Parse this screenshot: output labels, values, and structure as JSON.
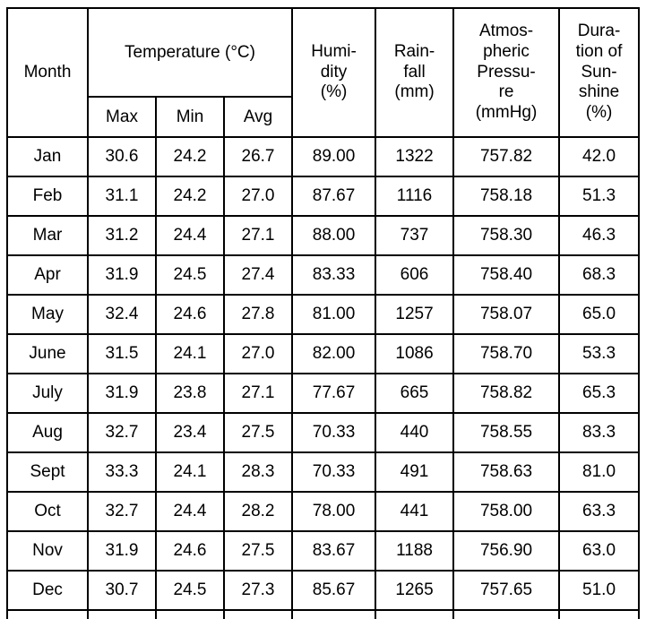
{
  "table": {
    "headers": {
      "month": "Month",
      "temperature_group": "Temperature (°C)",
      "temp_max": "Max",
      "temp_min": "Min",
      "temp_avg": "Avg",
      "humidity": "Humi-\ndity\n(%)",
      "rainfall": "Rain-\nfall\n(mm)",
      "pressure": "Atmos-\npheric\nPressu-\nre\n(mmHg)",
      "sunshine": "Dura-\ntion of\nSun-\nshine\n(%)"
    },
    "rows": [
      {
        "month": "Jan",
        "max": "30.6",
        "min": "24.2",
        "avg": "26.7",
        "humidity": "89.00",
        "rainfall": "1322",
        "pressure": "757.82",
        "sunshine": "42.0"
      },
      {
        "month": "Feb",
        "max": "31.1",
        "min": "24.2",
        "avg": "27.0",
        "humidity": "87.67",
        "rainfall": "1116",
        "pressure": "758.18",
        "sunshine": "51.3"
      },
      {
        "month": "Mar",
        "max": "31.2",
        "min": "24.4",
        "avg": "27.1",
        "humidity": "88.00",
        "rainfall": "737",
        "pressure": "758.30",
        "sunshine": "46.3"
      },
      {
        "month": "Apr",
        "max": "31.9",
        "min": "24.5",
        "avg": "27.4",
        "humidity": "83.33",
        "rainfall": "606",
        "pressure": "758.40",
        "sunshine": "68.3"
      },
      {
        "month": "May",
        "max": "32.4",
        "min": "24.6",
        "avg": "27.8",
        "humidity": "81.00",
        "rainfall": "1257",
        "pressure": "758.07",
        "sunshine": "65.0"
      },
      {
        "month": "June",
        "max": "31.5",
        "min": "24.1",
        "avg": "27.0",
        "humidity": "82.00",
        "rainfall": "1086",
        "pressure": "758.70",
        "sunshine": "53.3"
      },
      {
        "month": "July",
        "max": "31.9",
        "min": "23.8",
        "avg": "27.1",
        "humidity": "77.67",
        "rainfall": "665",
        "pressure": "758.82",
        "sunshine": "65.3"
      },
      {
        "month": "Aug",
        "max": "32.7",
        "min": "23.4",
        "avg": "27.5",
        "humidity": "70.33",
        "rainfall": "440",
        "pressure": "758.55",
        "sunshine": "83.3"
      },
      {
        "month": "Sept",
        "max": "33.3",
        "min": "24.1",
        "avg": "28.3",
        "humidity": "70.33",
        "rainfall": "491",
        "pressure": "758.63",
        "sunshine": "81.0"
      },
      {
        "month": "Oct",
        "max": "32.7",
        "min": "24.4",
        "avg": "28.2",
        "humidity": "78.00",
        "rainfall": "441",
        "pressure": "758.00",
        "sunshine": "63.3"
      },
      {
        "month": "Nov",
        "max": "31.9",
        "min": "24.6",
        "avg": "27.5",
        "humidity": "83.67",
        "rainfall": "1188",
        "pressure": "756.90",
        "sunshine": "63.0"
      },
      {
        "month": "Dec",
        "max": "30.7",
        "min": "24.5",
        "avg": "27.3",
        "humidity": "85.67",
        "rainfall": "1265",
        "pressure": "757.65",
        "sunshine": "51.0"
      }
    ]
  },
  "colors": {
    "border": "#000000",
    "text": "#000000",
    "background": "#ffffff"
  }
}
